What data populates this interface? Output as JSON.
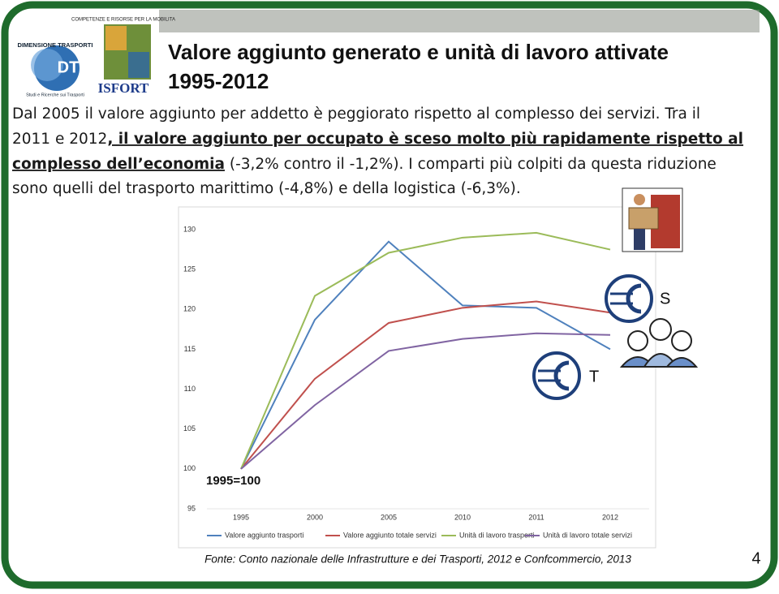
{
  "logos": {
    "left_name": "DIMENSIONE TRASPORTI",
    "left_initials": "DT",
    "left_tagline": "Studi e Ricerche sui Trasporti",
    "right_motto": "COMPETENZE E RISORSE PER LA MOBILITA",
    "right_name": "ISFORT"
  },
  "header": {
    "title_line1": "Valore aggiunto generato e unità di lavoro attivate",
    "title_line2": "1995-2012"
  },
  "intro": {
    "line1": "Dal 2005 il valore aggiunto per addetto è peggiorato rispetto al complesso dei servizi. Tra il",
    "line2_plain": "2011 e 2012",
    "line2_bold": ", il valore aggiunto per occupato è sceso  molto più rapidamente rispetto al",
    "line3_bold": "complesso dell’economia",
    "line3_plain": " (-3,2% contro il -1,2%). I comparti più colpiti da questa riduzione",
    "line4": "sono quelli del trasporto marittimo (-4,8%) e della logistica (-6,3%)."
  },
  "chart_data": {
    "type": "line",
    "annotation": "1995=100",
    "categories": [
      "1995",
      "2000",
      "2005",
      "2010",
      "2011",
      "2012"
    ],
    "series": [
      {
        "name": "Valore aggiunto trasporti",
        "color": "#4f81bd",
        "values": [
          100,
          118.7,
          128.5,
          120.5,
          120.2,
          115.0
        ]
      },
      {
        "name": "Valore aggiunto totale servizi",
        "color": "#c0504d",
        "values": [
          100,
          111.3,
          118.3,
          120.2,
          121.0,
          119.6
        ]
      },
      {
        "name": "Unità di lavoro trasporti",
        "color": "#9bbb59",
        "values": [
          100,
          121.7,
          127.1,
          129.0,
          129.6,
          127.5
        ]
      },
      {
        "name": "Unità di lavoro totale servizi",
        "color": "#8064a2",
        "values": [
          100,
          108.0,
          114.8,
          116.3,
          117.0,
          116.8
        ]
      }
    ],
    "ylim": [
      95,
      130
    ],
    "yticks": [
      95,
      100,
      105,
      110,
      115,
      120,
      125,
      130
    ],
    "grid": false,
    "legend": "bottom"
  },
  "icon_labels": {
    "services": "S",
    "transport": "T"
  },
  "footer": {
    "source": "Fonte: Conto nazionale delle Infrastrutture e dei Trasporti, 2012 e Confcommercio, 2013",
    "page_number": "4"
  }
}
